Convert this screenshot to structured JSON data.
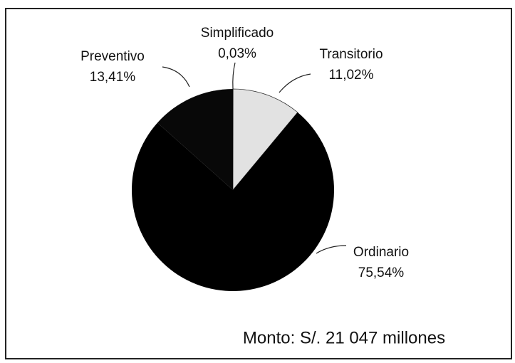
{
  "chart_data": {
    "type": "pie",
    "categories": [
      "Simplificado",
      "Transitorio",
      "Ordinario",
      "Preventivo"
    ],
    "values": [
      0.03,
      11.02,
      75.54,
      13.41
    ],
    "value_labels": [
      "0,03%",
      "11,02%",
      "75,54%",
      "13,41%"
    ],
    "colors": [
      "#ffffff",
      "#e2e2e2",
      "#000000",
      "#080808"
    ],
    "annotation": "Monto: S/. 21 047 millones"
  }
}
